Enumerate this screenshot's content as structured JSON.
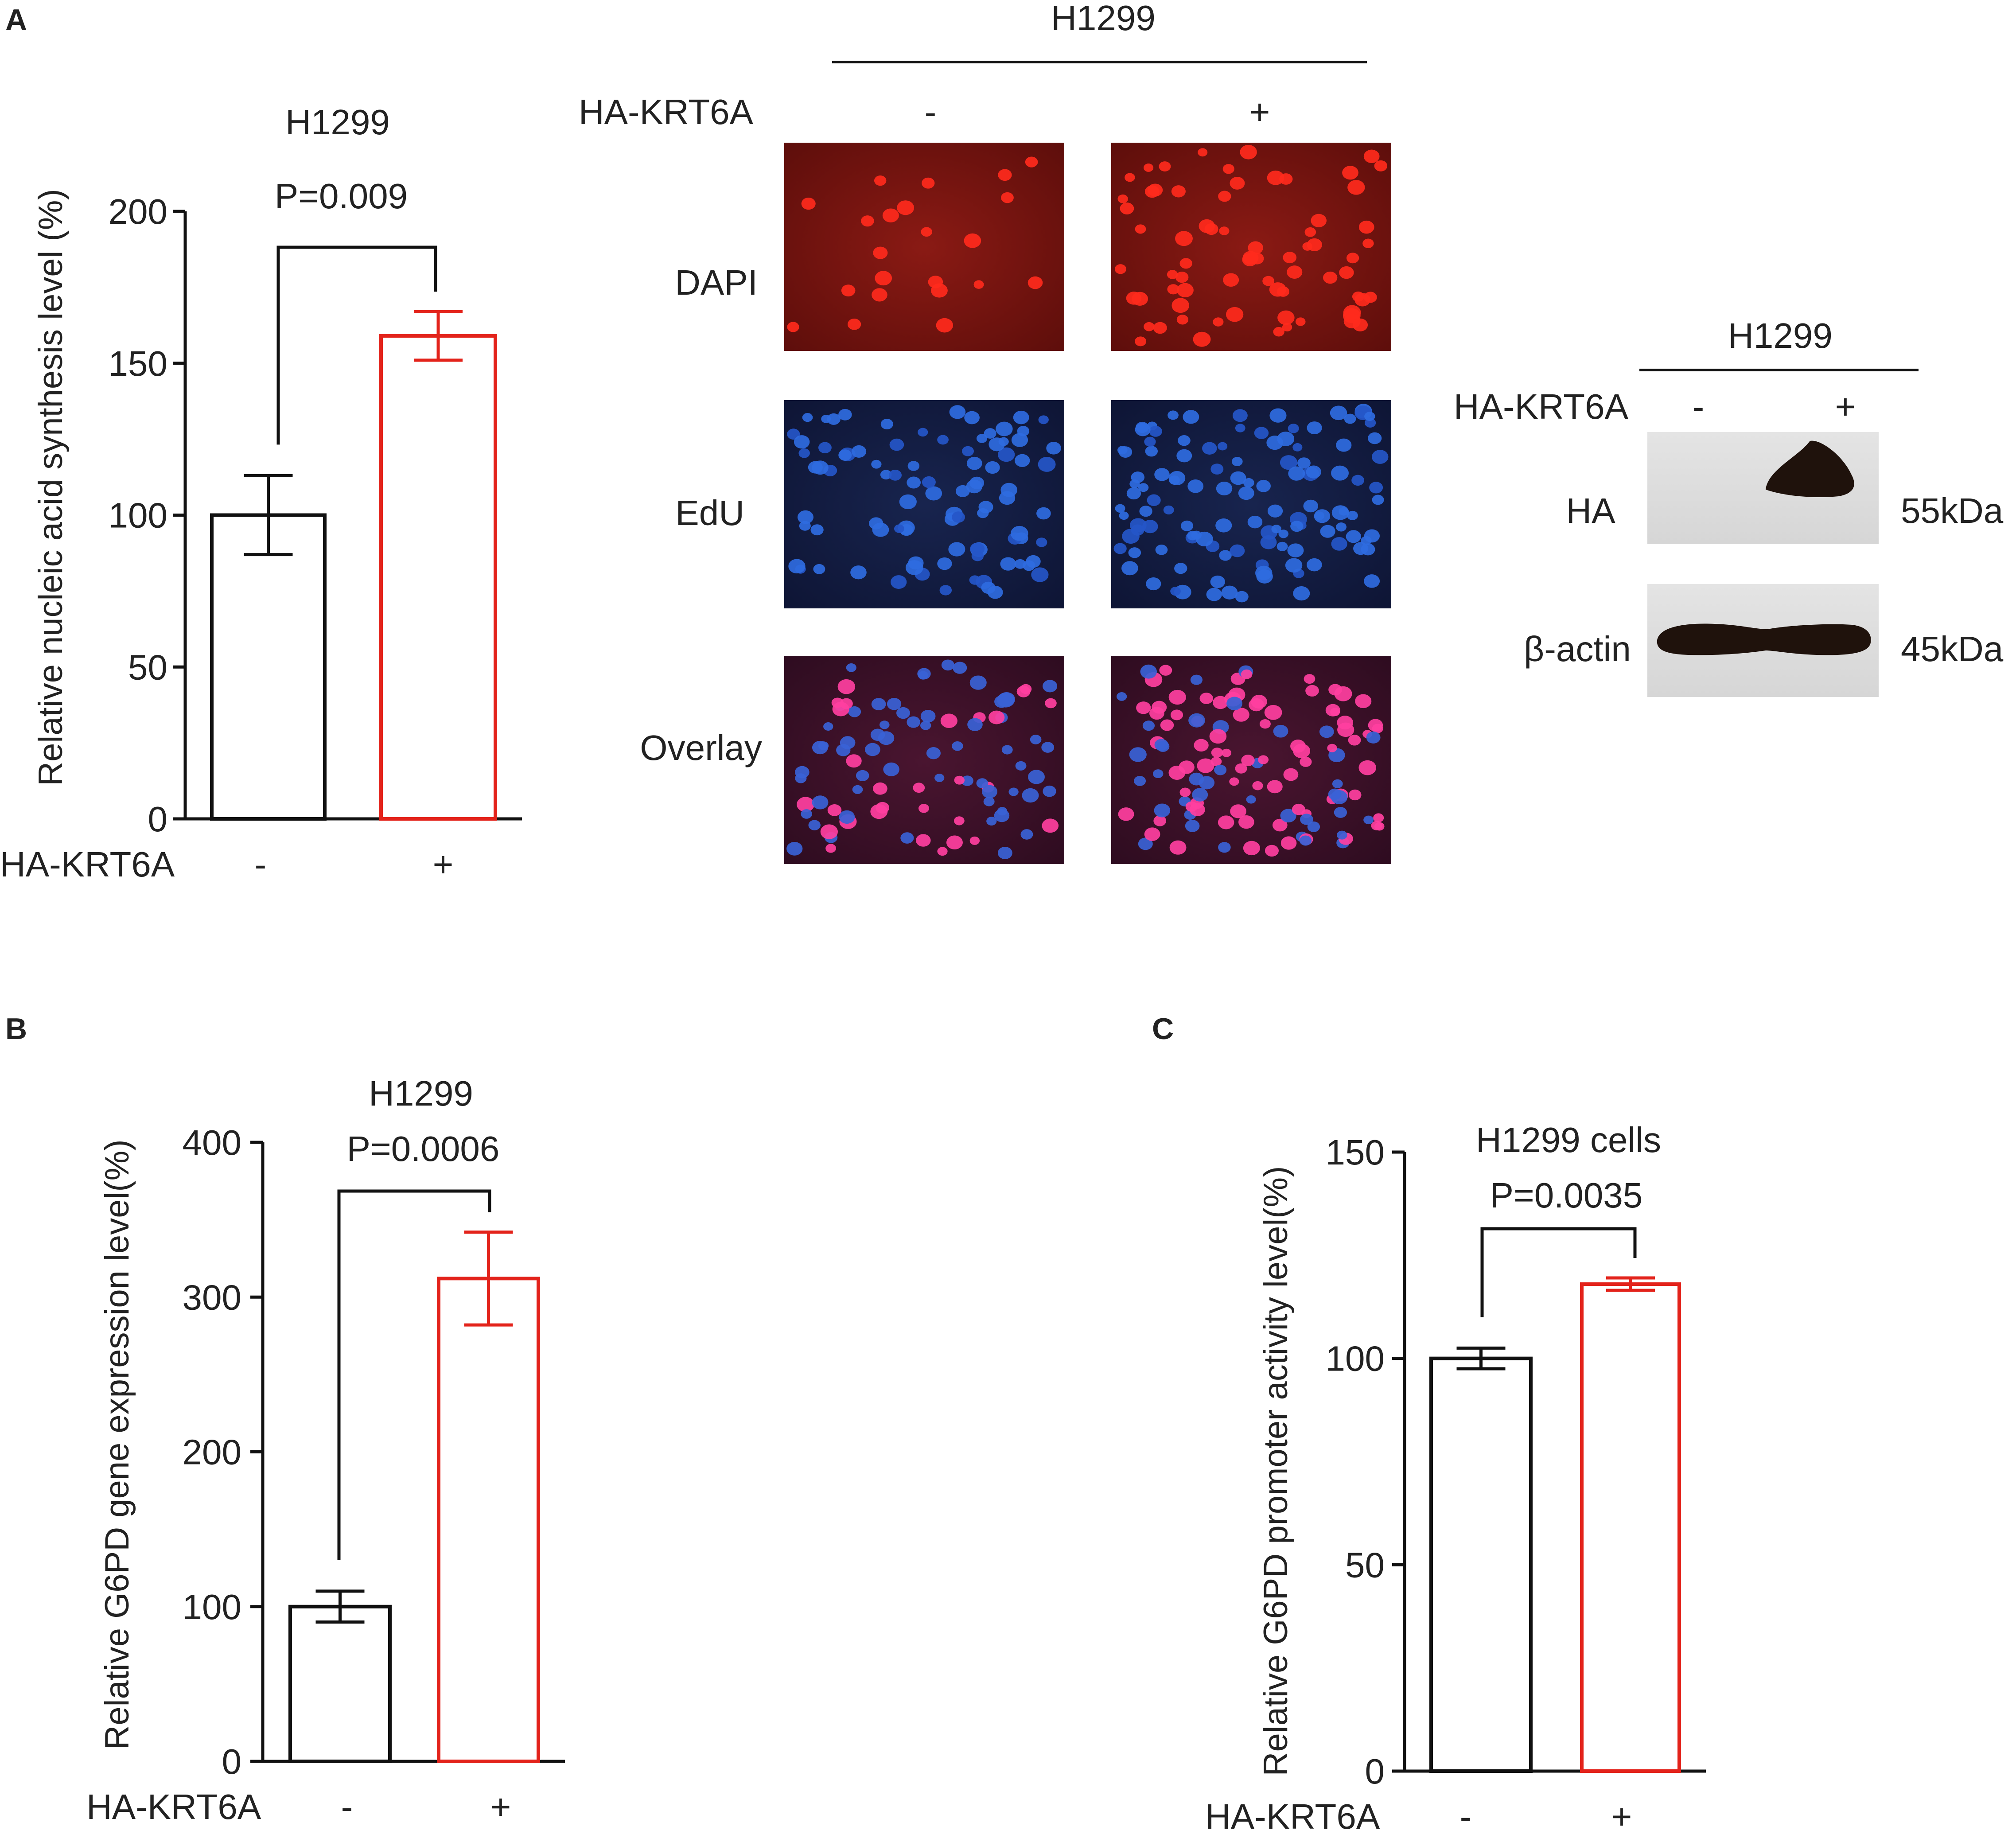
{
  "colors": {
    "control": "#111111",
    "treated": "#e3231b",
    "axis": "#111111"
  },
  "panels": {
    "A": {
      "letter": "A"
    },
    "B": {
      "letter": "B"
    },
    "C": {
      "letter": "C"
    }
  },
  "chart_data": [
    {
      "id": "A",
      "type": "bar",
      "title": "H1299",
      "pvalue": "P=0.009",
      "ylabel": "Relative nucleic acid synthesis level (%)",
      "xlabel": "HA-KRT6A",
      "categories": [
        "-",
        "+"
      ],
      "values": [
        100,
        159
      ],
      "errors": [
        13,
        8
      ],
      "ylim": [
        0,
        200
      ],
      "yticks": [
        0,
        50,
        100,
        150,
        200
      ],
      "grid": false
    },
    {
      "id": "B",
      "type": "bar",
      "title": "H1299",
      "pvalue": "P=0.0006",
      "ylabel": "Relative G6PD gene expression level(%)",
      "xlabel": "HA-KRT6A",
      "categories": [
        "-",
        "+"
      ],
      "values": [
        100,
        312
      ],
      "errors": [
        10,
        30
      ],
      "ylim": [
        0,
        400
      ],
      "yticks": [
        0,
        100,
        200,
        300,
        400
      ],
      "grid": false
    },
    {
      "id": "C",
      "type": "bar",
      "title": "H1299 cells",
      "pvalue": "P=0.0035",
      "ylabel": "Relative G6PD promoter activity level(%)",
      "xlabel": "HA-KRT6A",
      "categories": [
        "-",
        "+"
      ],
      "values": [
        100,
        118
      ],
      "errors": [
        2.5,
        1.5
      ],
      "ylim": [
        0,
        150
      ],
      "yticks": [
        0,
        50,
        100,
        150
      ],
      "grid": false
    }
  ],
  "microscopy": {
    "cell_line": "H1299",
    "treatment_label": "HA-KRT6A",
    "columns": [
      "-",
      "+"
    ],
    "rows": [
      "DAPI",
      "EdU",
      "Overlay"
    ]
  },
  "western": {
    "cell_line": "H1299",
    "treatment_label": "HA-KRT6A",
    "columns": [
      "-",
      "+"
    ],
    "bands": [
      {
        "label": "HA",
        "size": "55kDa"
      },
      {
        "label": "β-actin",
        "size": "45kDa"
      }
    ]
  }
}
